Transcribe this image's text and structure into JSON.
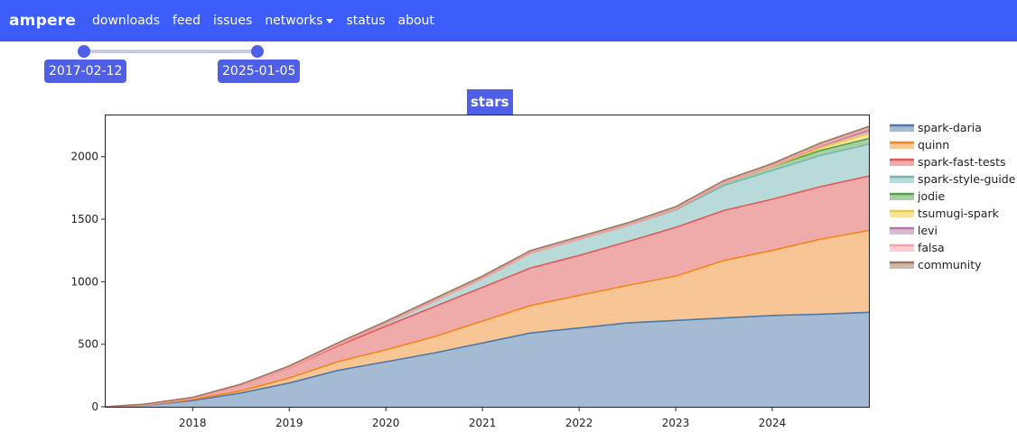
{
  "nav": {
    "brand": "ampere",
    "links": [
      "downloads",
      "feed",
      "issues",
      "networks",
      "status",
      "about"
    ]
  },
  "slider": {
    "start_label": "2017-02-12",
    "end_label": "2025-01-05"
  },
  "chart_data": {
    "type": "area",
    "stacked": true,
    "title": "stars",
    "xlabel": "",
    "ylabel": "",
    "x_tick_labels": [
      "2018",
      "2019",
      "2020",
      "2021",
      "2022",
      "2023",
      "2024"
    ],
    "y_tick_labels": [
      "0",
      "500",
      "1000",
      "1500",
      "2000"
    ],
    "xlim": [
      2017.1,
      2025.0
    ],
    "ylim": [
      0,
      2330
    ],
    "legend_position": "right",
    "grid": false,
    "x": [
      2017.1,
      2017.5,
      2018.0,
      2018.5,
      2019.0,
      2019.5,
      2020.0,
      2020.5,
      2021.0,
      2021.5,
      2022.0,
      2022.5,
      2023.0,
      2023.5,
      2024.0,
      2024.5,
      2025.0
    ],
    "series": [
      {
        "name": "spark-daria",
        "color": "#4c78a8",
        "fill": "#a5bbd3",
        "values": [
          0,
          10,
          50,
          110,
          190,
          290,
          360,
          430,
          510,
          590,
          630,
          670,
          690,
          710,
          730,
          740,
          755
        ]
      },
      {
        "name": "quinn",
        "color": "#f58518",
        "fill": "#f8c594",
        "values": [
          0,
          2,
          8,
          18,
          40,
          70,
          95,
          130,
          175,
          220,
          260,
          300,
          355,
          460,
          520,
          600,
          655
        ]
      },
      {
        "name": "spark-fast-tests",
        "color": "#e45756",
        "fill": "#efaaaa",
        "values": [
          0,
          3,
          10,
          40,
          80,
          125,
          190,
          240,
          270,
          300,
          320,
          350,
          390,
          400,
          410,
          420,
          435
        ]
      },
      {
        "name": "spark-style-guide",
        "color": "#72b7b2",
        "fill": "#b8dad8",
        "values": [
          0,
          0,
          0,
          0,
          2,
          8,
          20,
          45,
          70,
          120,
          130,
          130,
          140,
          200,
          230,
          250,
          255
        ]
      },
      {
        "name": "jodie",
        "color": "#54a24b",
        "fill": "#a9d0a4",
        "values": [
          0,
          0,
          0,
          0,
          0,
          0,
          0,
          0,
          0,
          0,
          0,
          0,
          5,
          20,
          30,
          40,
          45
        ]
      },
      {
        "name": "tsumugi-spark",
        "color": "#eeca3b",
        "fill": "#f6e49c",
        "values": [
          0,
          0,
          0,
          0,
          0,
          0,
          0,
          0,
          0,
          0,
          0,
          0,
          0,
          0,
          0,
          20,
          40
        ]
      },
      {
        "name": "levi",
        "color": "#b279a2",
        "fill": "#d8bbd0",
        "values": [
          0,
          0,
          0,
          0,
          0,
          0,
          0,
          0,
          0,
          0,
          0,
          0,
          0,
          0,
          5,
          15,
          25
        ]
      },
      {
        "name": "falsa",
        "color": "#ff9da6",
        "fill": "#ffced2",
        "values": [
          0,
          0,
          0,
          0,
          0,
          0,
          0,
          0,
          0,
          0,
          0,
          0,
          0,
          0,
          0,
          5,
          12
        ]
      },
      {
        "name": "community",
        "color": "#9d755d",
        "fill": "#ceb9ad",
        "values": [
          0,
          5,
          8,
          12,
          15,
          17,
          18,
          20,
          20,
          20,
          20,
          20,
          20,
          20,
          20,
          20,
          20
        ]
      }
    ]
  }
}
